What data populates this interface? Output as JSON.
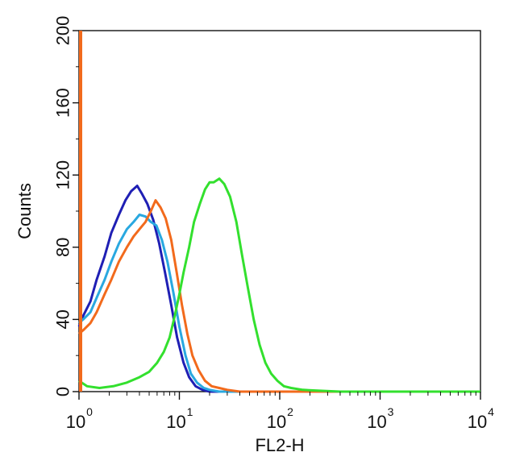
{
  "chart_data": {
    "type": "line",
    "xlabel": "FL2-H",
    "ylabel": "Counts",
    "xscale": "log",
    "xlim": [
      1,
      10000
    ],
    "ylim": [
      0,
      200
    ],
    "x_ticks": [
      {
        "base": "10",
        "exp": "0"
      },
      {
        "base": "10",
        "exp": "1"
      },
      {
        "base": "10",
        "exp": "2"
      },
      {
        "base": "10",
        "exp": "3"
      },
      {
        "base": "10",
        "exp": "4"
      }
    ],
    "y_ticks": [
      "0",
      "40",
      "80",
      "120",
      "160",
      "200"
    ],
    "y_tick_values": [
      0,
      40,
      80,
      120,
      160,
      200
    ],
    "grid": false,
    "legend": "none",
    "series": [
      {
        "color": "#1f1fb4",
        "points": [
          [
            1.0,
            36
          ],
          [
            1.1,
            42
          ],
          [
            1.3,
            50
          ],
          [
            1.5,
            62
          ],
          [
            1.8,
            75
          ],
          [
            2.1,
            88
          ],
          [
            2.5,
            98
          ],
          [
            2.9,
            106
          ],
          [
            3.3,
            111
          ],
          [
            3.8,
            114
          ],
          [
            4.2,
            110
          ],
          [
            4.8,
            104
          ],
          [
            5.5,
            95
          ],
          [
            6.3,
            82
          ],
          [
            7.2,
            66
          ],
          [
            8.3,
            48
          ],
          [
            9.5,
            30
          ],
          [
            11,
            16
          ],
          [
            12.5,
            8
          ],
          [
            14.5,
            3
          ],
          [
            17,
            1
          ],
          [
            20,
            0
          ],
          [
            1000,
            0
          ],
          [
            10000,
            0
          ]
        ]
      },
      {
        "color": "#29a8e0",
        "points": [
          [
            1.0,
            38
          ],
          [
            1.1,
            40
          ],
          [
            1.3,
            44
          ],
          [
            1.5,
            52
          ],
          [
            1.8,
            62
          ],
          [
            2.1,
            72
          ],
          [
            2.5,
            82
          ],
          [
            3.0,
            90
          ],
          [
            3.5,
            94
          ],
          [
            4.0,
            98
          ],
          [
            4.6,
            97
          ],
          [
            5.2,
            94
          ],
          [
            5.9,
            92
          ],
          [
            6.7,
            84
          ],
          [
            7.6,
            72
          ],
          [
            8.7,
            55
          ],
          [
            10,
            36
          ],
          [
            11.5,
            20
          ],
          [
            13,
            10
          ],
          [
            15,
            5
          ],
          [
            17.5,
            2
          ],
          [
            20,
            1
          ],
          [
            25,
            0
          ],
          [
            1000,
            0
          ],
          [
            10000,
            0
          ]
        ]
      },
      {
        "color": "#f26a1c",
        "points": [
          [
            1.0,
            32
          ],
          [
            1.1,
            34
          ],
          [
            1.3,
            38
          ],
          [
            1.5,
            44
          ],
          [
            1.8,
            54
          ],
          [
            2.1,
            62
          ],
          [
            2.5,
            72
          ],
          [
            3.0,
            80
          ],
          [
            3.5,
            86
          ],
          [
            4.0,
            90
          ],
          [
            4.6,
            94
          ],
          [
            5.2,
            100
          ],
          [
            5.8,
            106
          ],
          [
            6.5,
            102
          ],
          [
            7.3,
            96
          ],
          [
            8.3,
            84
          ],
          [
            9.4,
            66
          ],
          [
            10.6,
            48
          ],
          [
            12,
            32
          ],
          [
            13.5,
            20
          ],
          [
            15.5,
            12
          ],
          [
            18,
            6
          ],
          [
            21,
            3
          ],
          [
            25,
            2
          ],
          [
            30,
            1
          ],
          [
            40,
            0
          ],
          [
            1000,
            0
          ],
          [
            10000,
            0
          ]
        ]
      },
      {
        "color": "#33e02e",
        "points": [
          [
            1.0,
            6
          ],
          [
            1.2,
            3
          ],
          [
            1.6,
            2
          ],
          [
            2.2,
            3
          ],
          [
            3.0,
            5
          ],
          [
            4.0,
            8
          ],
          [
            5.0,
            11
          ],
          [
            6.0,
            16
          ],
          [
            7.0,
            22
          ],
          [
            8.0,
            30
          ],
          [
            9.0,
            42
          ],
          [
            10,
            54
          ],
          [
            11,
            66
          ],
          [
            12.5,
            80
          ],
          [
            14,
            94
          ],
          [
            16,
            104
          ],
          [
            18,
            112
          ],
          [
            20,
            116
          ],
          [
            22,
            116
          ],
          [
            25,
            118
          ],
          [
            28,
            115
          ],
          [
            32,
            108
          ],
          [
            37,
            94
          ],
          [
            42,
            76
          ],
          [
            48,
            58
          ],
          [
            55,
            40
          ],
          [
            63,
            26
          ],
          [
            72,
            16
          ],
          [
            82,
            10
          ],
          [
            95,
            6
          ],
          [
            110,
            3
          ],
          [
            130,
            2
          ],
          [
            170,
            1
          ],
          [
            250,
            0.5
          ],
          [
            400,
            0
          ],
          [
            10000,
            0
          ]
        ]
      }
    ],
    "spike_color": "#f26a1c"
  }
}
